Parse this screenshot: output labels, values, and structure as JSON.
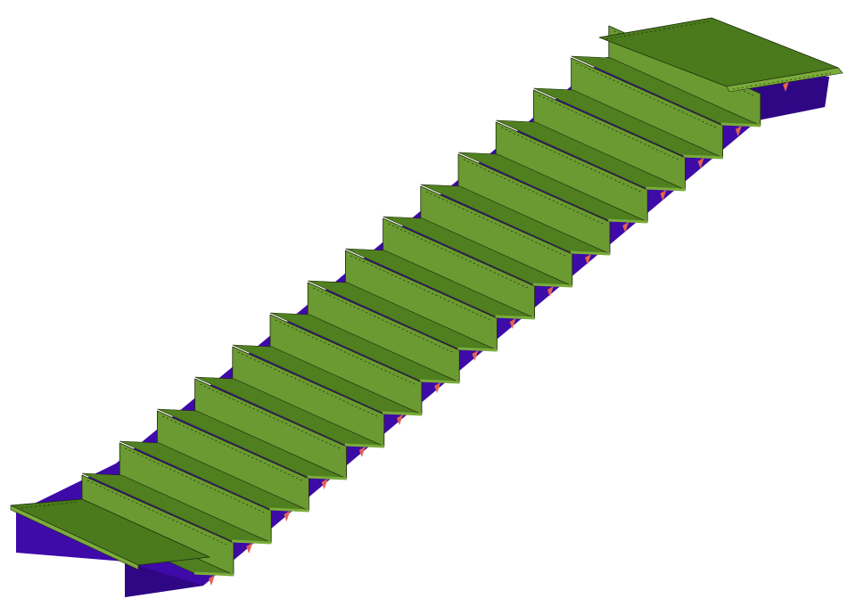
{
  "drawing": {
    "step_count": 15,
    "colors": {
      "background": "#ffffff",
      "stringer": "#3e0aa8",
      "stringer_dark": "#2f0785",
      "tread_top": "#4f7f1f",
      "tread_shadow": "#3f6a17",
      "riser_face": "#6a9a31",
      "nosing": "#7bab3b",
      "edge": "#1d2a0c",
      "bracket": "#e2634f",
      "landing": "#4a7a1c"
    }
  }
}
